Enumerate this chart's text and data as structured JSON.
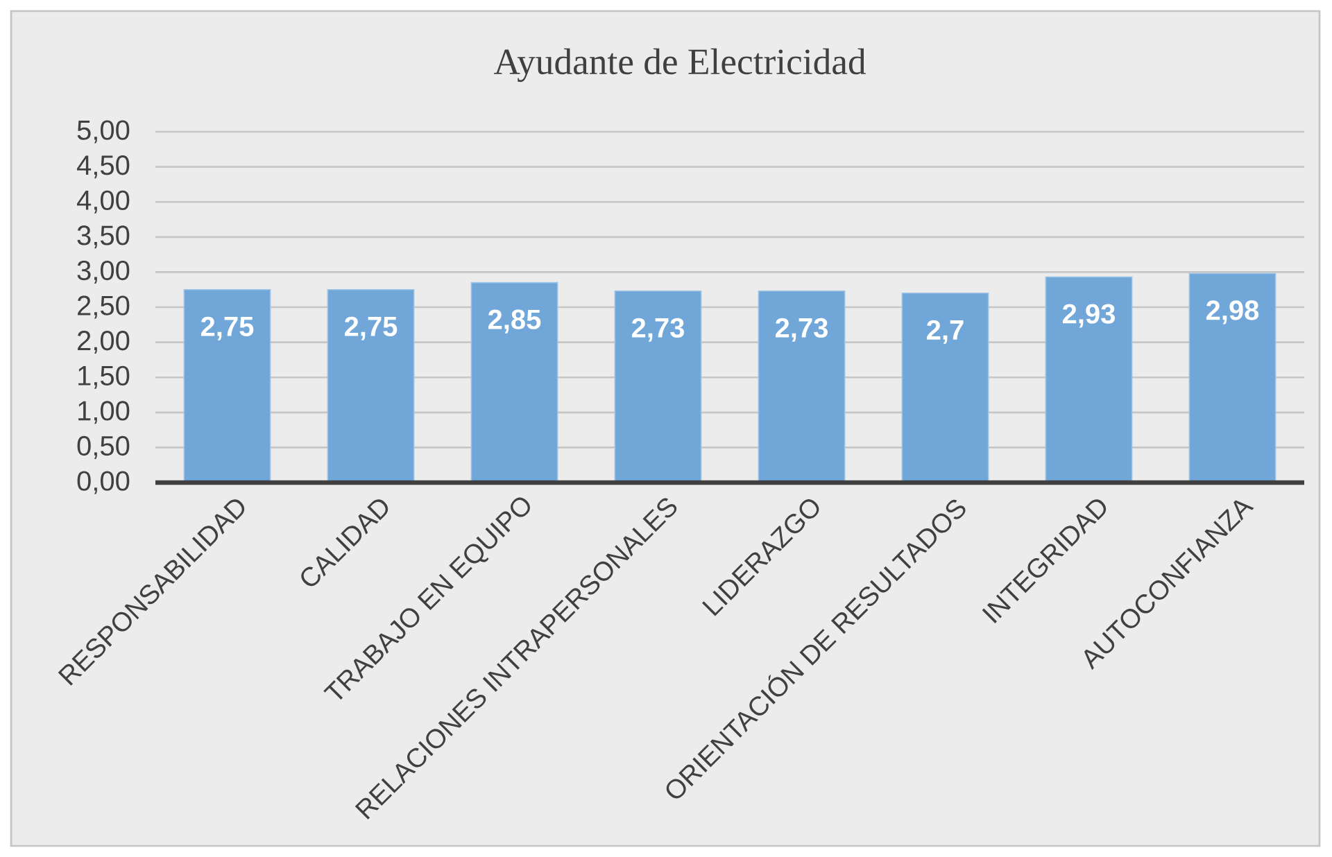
{
  "chart_data": {
    "type": "bar",
    "title": "Ayudante de Electricidad",
    "categories": [
      "RESPONSABILIDAD",
      "CALIDAD",
      "TRABAJO EN EQUIPO",
      "RELACIONES INTRAPERSONALES",
      "LIDERAZGO",
      "ORIENTACIÓN DE RESULTADOS",
      "INTEGRIDAD",
      "AUTOCONFIANZA"
    ],
    "values": [
      2.75,
      2.75,
      2.85,
      2.73,
      2.73,
      2.7,
      2.93,
      2.98
    ],
    "value_labels": [
      "2,75",
      "2,75",
      "2,85",
      "2,73",
      "2,73",
      "2,7",
      "2,93",
      "2,98"
    ],
    "color": "#70a6d8",
    "ylim": [
      0,
      5
    ],
    "yticks": [
      {
        "value": 0,
        "label": "0,00"
      },
      {
        "value": 0.5,
        "label": "0,50"
      },
      {
        "value": 1,
        "label": "1,00"
      },
      {
        "value": 1.5,
        "label": "1,50"
      },
      {
        "value": 2,
        "label": "2,00"
      },
      {
        "value": 2.5,
        "label": "2,50"
      },
      {
        "value": 3,
        "label": "3,00"
      },
      {
        "value": 3.5,
        "label": "3,50"
      },
      {
        "value": 4,
        "label": "4,00"
      },
      {
        "value": 4.5,
        "label": "4,50"
      },
      {
        "value": 5,
        "label": "5,00"
      }
    ],
    "grid": "y"
  }
}
